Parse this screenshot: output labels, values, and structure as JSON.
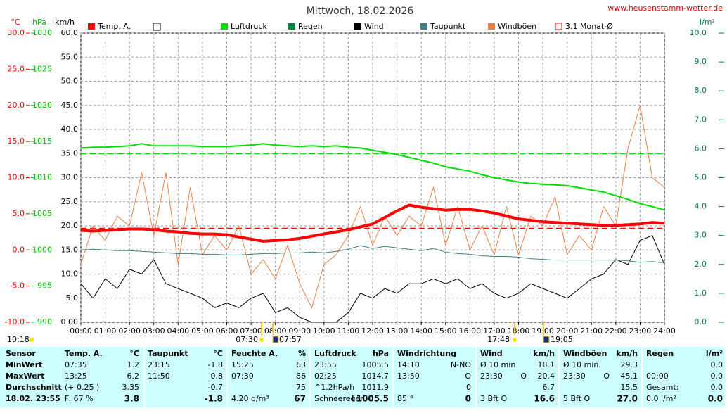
{
  "chart_data": {
    "type": "line",
    "title": "Mittwoch, 18.02.2026",
    "source": "www.heusenstamm-wetter.de",
    "axis_labels": {
      "temp": "°C",
      "hpa": "hPa",
      "kmh": "km/h",
      "rain": "l/m²"
    },
    "x": [
      0,
      0.5,
      1,
      1.5,
      2,
      2.5,
      3,
      3.5,
      4,
      4.5,
      5,
      5.5,
      6,
      6.5,
      7,
      7.5,
      8,
      8.5,
      9,
      9.5,
      10,
      10.5,
      11,
      11.5,
      12,
      12.5,
      13,
      13.5,
      14,
      14.5,
      15,
      15.5,
      16,
      16.5,
      17,
      17.5,
      18,
      18.5,
      19,
      19.5,
      20,
      20.5,
      21,
      21.5,
      22,
      22.5,
      23,
      23.5,
      24
    ],
    "xlim": [
      0,
      24
    ],
    "xticks": [
      {
        "value": 0,
        "label": "00:00"
      },
      {
        "value": 1,
        "label": "01:00"
      },
      {
        "value": 2,
        "label": "02:00"
      },
      {
        "value": 3,
        "label": "03:00"
      },
      {
        "value": 4,
        "label": "04:00"
      },
      {
        "value": 5,
        "label": "05:00"
      },
      {
        "value": 6,
        "label": "06:00"
      },
      {
        "value": 7,
        "label": "07:00"
      },
      {
        "value": 8,
        "label": "08:00"
      },
      {
        "value": 9,
        "label": "09:00"
      },
      {
        "value": 10,
        "label": "10:00"
      },
      {
        "value": 11,
        "label": "11:00"
      },
      {
        "value": 12,
        "label": "12:00"
      },
      {
        "value": 13,
        "label": "13:00"
      },
      {
        "value": 14,
        "label": "14:00"
      },
      {
        "value": 15,
        "label": "15:00"
      },
      {
        "value": 16,
        "label": "16:00"
      },
      {
        "value": 17,
        "label": "17:00"
      },
      {
        "value": 18,
        "label": "18:00"
      },
      {
        "value": 19,
        "label": "19:00"
      },
      {
        "value": 20,
        "label": "20:00"
      },
      {
        "value": 21,
        "label": "21:00"
      },
      {
        "value": 22,
        "label": "22:00"
      },
      {
        "value": 23,
        "label": "23:00"
      },
      {
        "value": 24,
        "label": "24:00"
      }
    ],
    "ylim": [
      0,
      60
    ],
    "yticks": [
      {
        "value": 0,
        "label": "0.00"
      },
      {
        "value": 5,
        "label": "5.0"
      },
      {
        "value": 10,
        "label": "10.0"
      },
      {
        "value": 15,
        "label": "15.0"
      },
      {
        "value": 20,
        "label": "20.0"
      },
      {
        "value": 25,
        "label": "25.0"
      },
      {
        "value": 30,
        "label": "30.0"
      },
      {
        "value": 35,
        "label": "35.0"
      },
      {
        "value": 40,
        "label": "40.0"
      },
      {
        "value": 45,
        "label": "45.0"
      },
      {
        "value": 50,
        "label": "50.0"
      },
      {
        "value": 55,
        "label": "55.0"
      },
      {
        "value": 60,
        "label": "60.0"
      }
    ],
    "temp_lim": [
      -10,
      30
    ],
    "temp_ticks": [
      {
        "value": -10,
        "label": "-10.0"
      },
      {
        "value": -5,
        "label": "-5.0"
      },
      {
        "value": 0,
        "label": "0.0"
      },
      {
        "value": 5,
        "label": "5.0"
      },
      {
        "value": 10,
        "label": "10.0"
      },
      {
        "value": 15,
        "label": "15.0"
      },
      {
        "value": 20,
        "label": "20.0"
      },
      {
        "value": 25,
        "label": "25.0"
      },
      {
        "value": 30,
        "label": "30.0"
      }
    ],
    "temp_color": "#ff0000",
    "hpa_lim": [
      990,
      1030
    ],
    "hpa_ticks": [
      990,
      995,
      1000,
      1005,
      1010,
      1015,
      1020,
      1025,
      1030
    ],
    "hpa_color": "#00c000",
    "y2lim": [
      0,
      10
    ],
    "y2ticks": [
      {
        "value": 0,
        "label": "0.0"
      },
      {
        "value": 1,
        "label": "1.0"
      },
      {
        "value": 2,
        "label": "2.0"
      },
      {
        "value": 3,
        "label": "3.0"
      },
      {
        "value": 4,
        "label": "4.0"
      },
      {
        "value": 5,
        "label": "5.0"
      },
      {
        "value": 6,
        "label": "6.0"
      },
      {
        "value": 7,
        "label": "7.0"
      },
      {
        "value": 8,
        "label": "8.0"
      },
      {
        "value": 9,
        "label": "9.0"
      },
      {
        "value": 10,
        "label": "10.0"
      }
    ],
    "y2_color": "#008040",
    "grid": true,
    "series": [
      {
        "name": "Windböen",
        "color": "#e8804a",
        "width": 1,
        "axis": "y",
        "values": [
          12,
          20,
          17,
          22,
          20,
          31,
          18,
          31,
          12,
          28,
          14,
          18,
          15,
          20,
          10,
          13,
          9,
          16,
          8,
          3,
          12,
          14,
          18,
          24,
          16,
          22,
          18,
          22,
          20,
          28,
          16,
          24,
          15,
          20,
          14,
          24,
          14,
          22,
          20,
          26,
          14,
          18,
          15,
          24,
          20,
          36,
          45,
          30,
          28
        ]
      },
      {
        "name": "Wind",
        "color": "#000000",
        "width": 1,
        "axis": "y",
        "values": [
          8,
          5,
          9,
          7,
          11,
          10,
          13,
          8,
          7,
          6,
          5,
          3,
          4,
          3,
          5,
          6,
          2,
          3,
          1,
          0,
          0,
          0,
          2,
          6,
          5,
          7,
          6,
          8,
          8,
          9,
          8,
          9,
          7,
          8,
          6,
          5,
          6,
          8,
          7,
          6,
          5,
          7,
          9,
          10,
          13,
          12,
          17,
          18,
          12
        ]
      },
      {
        "name": "Taupunkt",
        "color": "#408080",
        "width": 1,
        "axis": "temp",
        "values": [
          0.0,
          0.1,
          0.0,
          -0.1,
          -0.1,
          -0.2,
          -0.3,
          -0.4,
          -0.5,
          -0.5,
          -0.6,
          -0.6,
          -0.7,
          -0.7,
          -0.6,
          -0.5,
          -0.5,
          -0.4,
          -0.4,
          -0.3,
          -0.4,
          -0.2,
          0.1,
          0.6,
          0.2,
          0.5,
          0.3,
          0.1,
          -0.1,
          0.2,
          -0.3,
          -0.5,
          -0.6,
          -0.8,
          -0.9,
          -0.9,
          -1.0,
          -1.2,
          -1.3,
          -1.4,
          -1.4,
          -1.4,
          -1.4,
          -1.4,
          -1.4,
          -1.5,
          -1.7,
          -1.6,
          -1.8
        ]
      },
      {
        "name": "Luftdruck",
        "color": "#00dd00",
        "width": 2,
        "axis": "hpa",
        "values": [
          1014.1,
          1014.2,
          1014.2,
          1014.3,
          1014.4,
          1014.7,
          1014.4,
          1014.4,
          1014.4,
          1014.4,
          1014.3,
          1014.3,
          1014.3,
          1014.4,
          1014.5,
          1014.7,
          1014.5,
          1014.4,
          1014.3,
          1014.4,
          1014.3,
          1014.4,
          1014.2,
          1014.1,
          1013.8,
          1013.5,
          1013.2,
          1012.8,
          1012.4,
          1012.0,
          1011.5,
          1011.2,
          1010.9,
          1010.4,
          1010.0,
          1009.7,
          1009.4,
          1009.2,
          1009.1,
          1009.0,
          1008.9,
          1008.6,
          1008.3,
          1008.0,
          1007.5,
          1007.0,
          1006.4,
          1006.0,
          1005.5
        ]
      },
      {
        "name": "Temp. A.",
        "color": "#ff0000",
        "width": 4,
        "axis": "temp",
        "values": [
          2.7,
          2.6,
          2.7,
          2.8,
          2.9,
          2.9,
          2.8,
          2.6,
          2.5,
          2.3,
          2.2,
          2.2,
          2.1,
          1.8,
          1.5,
          1.2,
          1.3,
          1.4,
          1.6,
          1.9,
          2.2,
          2.5,
          2.8,
          3.2,
          3.6,
          4.5,
          5.4,
          6.2,
          5.9,
          5.7,
          5.5,
          5.6,
          5.6,
          5.4,
          5.1,
          4.7,
          4.3,
          4.1,
          3.9,
          3.8,
          3.7,
          3.6,
          3.5,
          3.4,
          3.4,
          3.5,
          3.6,
          3.8,
          3.7
        ]
      }
    ],
    "legend_extra": [
      {
        "color": "#ffffff"
      },
      {
        "name": "Regen",
        "color": "#008040"
      },
      {
        "name": "3.1 Monat-Ø",
        "color": "#ff0000"
      }
    ],
    "monthly_avg": [
      {
        "axis": "temp",
        "value": 3.0,
        "color": "#ff0000"
      },
      {
        "axis": "hpa",
        "value": 1013.3,
        "color": "#00dd00"
      }
    ],
    "annotations": [
      "10:18",
      "07:30",
      "07:57",
      "17:48",
      "19:05"
    ]
  },
  "table": {
    "header": [
      [
        "Sensor"
      ],
      [
        "Temp. A.",
        "°C"
      ],
      [
        "Taupunkt",
        "°C"
      ],
      [
        "Feuchte A.",
        "%"
      ],
      [
        "Luftdruck",
        "hPa"
      ],
      [
        "Windrichtung"
      ],
      [
        "Wind",
        "km/h"
      ],
      [
        "Windböen",
        "km/h"
      ],
      [
        "Regen",
        "l/m²"
      ]
    ],
    "rows": [
      {
        "label": "MinWert",
        "cells": [
          [
            "07:35",
            "1.2"
          ],
          [
            "23:15",
            "-1.8"
          ],
          [
            "15:25",
            "63"
          ],
          [
            "23:55",
            "1005.5"
          ],
          [
            "14:10",
            "N-NO"
          ],
          [
            "Ø 10 min.",
            "18.1"
          ],
          [
            "Ø 10 min.",
            "29.3"
          ],
          [
            "0.0"
          ]
        ]
      },
      {
        "label": "MaxWert",
        "cells": [
          [
            "13:25",
            "6.2"
          ],
          [
            "11:50",
            "0.8"
          ],
          [
            "07:30",
            "86"
          ],
          [
            "02:25",
            "1014.7"
          ],
          [
            "13:50",
            "O"
          ],
          [
            "23:30",
            "O",
            "20.4"
          ],
          [
            "23:30",
            "O",
            "45.1"
          ],
          [
            "00:00",
            "0.0"
          ]
        ]
      },
      {
        "label": "Durchschnitt",
        "cells": [
          [
            "(+ 0.25 )",
            "3.35"
          ],
          [
            "-0.7"
          ],
          [
            "75"
          ],
          [
            "^1.2hPa/h",
            "1011.9"
          ],
          [
            "0"
          ],
          [
            "6.7"
          ],
          [
            "15.5"
          ],
          [
            "Gesamt:",
            "0.0"
          ]
        ]
      },
      {
        "label": "18.02. 23:55",
        "cells": [
          [
            "F: 67 %",
            "3.8"
          ],
          [
            "-1.8"
          ],
          [
            "4.20 g/m³",
            "67"
          ],
          [
            "Schneeregen",
            "↓1005.5"
          ],
          [
            "85 °",
            "0"
          ],
          [
            "3 Bft O",
            "16.6"
          ],
          [
            "5 Bft O",
            "27.0"
          ],
          [
            "0.0 l/m²",
            "0.0"
          ]
        ]
      }
    ]
  }
}
